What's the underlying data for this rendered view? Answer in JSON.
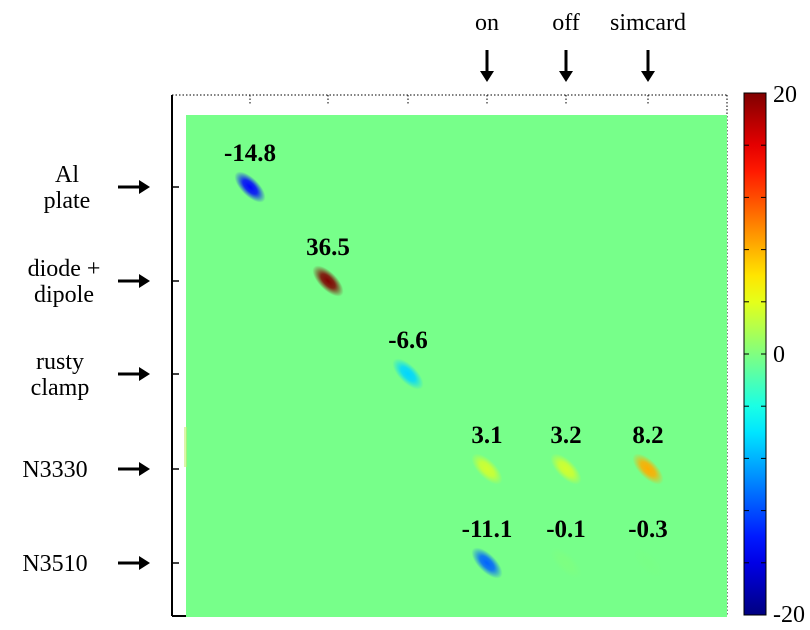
{
  "chart_data": {
    "type": "heatmap",
    "title": "",
    "row_labels": [
      [
        "Al",
        "plate"
      ],
      [
        "diode +",
        "dipole"
      ],
      [
        "rusty",
        "clamp"
      ],
      [
        "N3330"
      ],
      [
        "N3510"
      ]
    ],
    "column_labels": [
      "on",
      "off",
      "simcard"
    ],
    "points": [
      {
        "row": 0,
        "col": 0,
        "value": -14.8,
        "label": "-14.8"
      },
      {
        "row": 1,
        "col": 1,
        "value": 36.5,
        "label": "36.5"
      },
      {
        "row": 2,
        "col": 2,
        "value": -6.6,
        "label": "-6.6"
      },
      {
        "row": 3,
        "col": 3,
        "value": 3.1,
        "label": "3.1"
      },
      {
        "row": 3,
        "col": 4,
        "value": 3.2,
        "label": "3.2"
      },
      {
        "row": 3,
        "col": 5,
        "value": 8.2,
        "label": "8.2"
      },
      {
        "row": 4,
        "col": 3,
        "value": -11.1,
        "label": "-11.1"
      },
      {
        "row": 4,
        "col": 4,
        "value": -0.1,
        "label": "-0.1"
      },
      {
        "row": 4,
        "col": 5,
        "value": -0.3,
        "label": "-0.3"
      }
    ],
    "colorbar": {
      "min": -20,
      "max": 20,
      "ticks": [
        {
          "value": 20,
          "label": "20"
        },
        {
          "value": 0,
          "label": "0"
        },
        {
          "value": -20,
          "label": "-20"
        }
      ],
      "colormap": "jet"
    },
    "background_color": "#77ff8a"
  }
}
